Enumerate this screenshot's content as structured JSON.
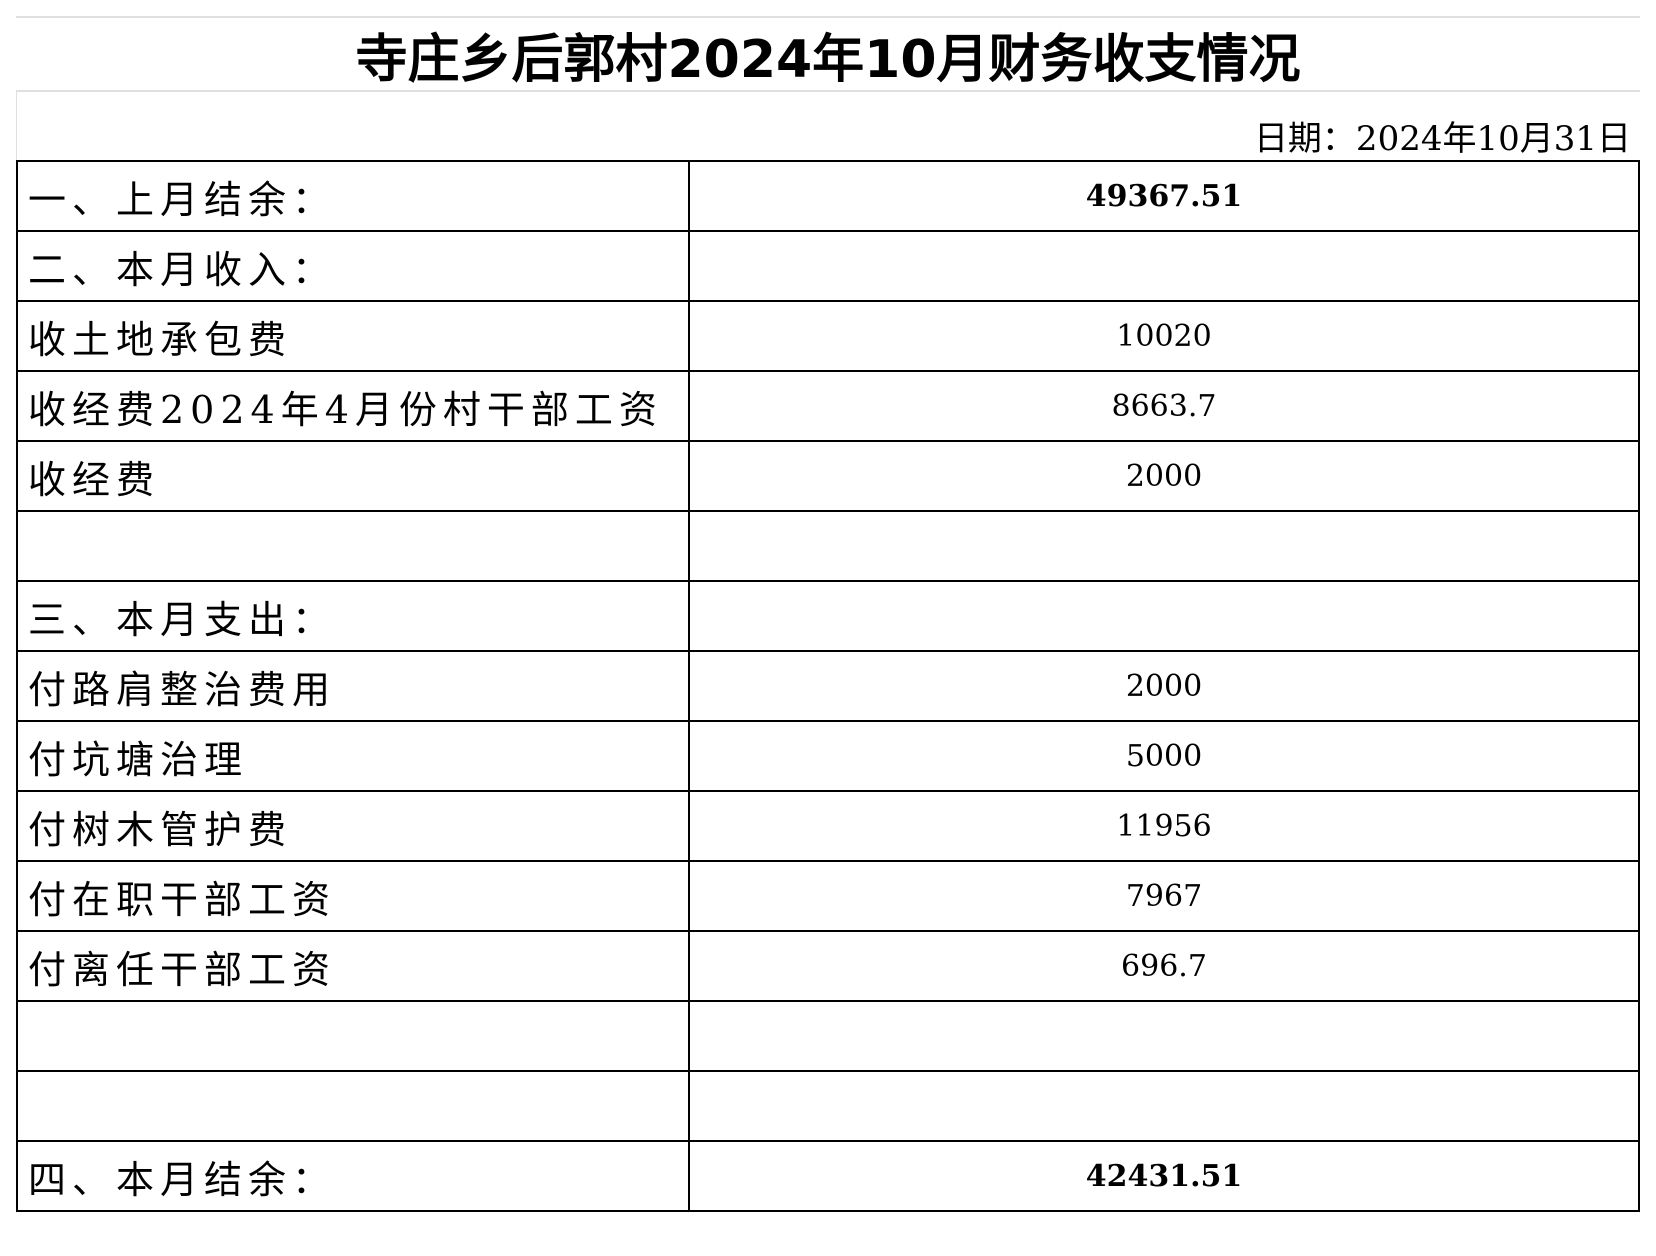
{
  "title": "寺庄乡后郭村2024年10月财务收支情况",
  "date_label": "日期：2024年10月31日",
  "rows": [
    {
      "label": "一、上月结余：",
      "value": "49367.51",
      "bold": true
    },
    {
      "label": "二、本月收入：",
      "value": ""
    },
    {
      "label": "收土地承包费",
      "value": "10020"
    },
    {
      "label": "收经费2024年4月份村干部工资",
      "value": "8663.7"
    },
    {
      "label": "收经费",
      "value": "2000"
    },
    {
      "label": "",
      "value": ""
    },
    {
      "label": "三、本月支出：",
      "value": ""
    },
    {
      "label": "付路肩整治费用",
      "value": "2000"
    },
    {
      "label": "付坑塘治理",
      "value": "5000"
    },
    {
      "label": "付树木管护费",
      "value": "11956"
    },
    {
      "label": "付在职干部工资",
      "value": "7967"
    },
    {
      "label": "付离任干部工资",
      "value": "696.7"
    },
    {
      "label": "",
      "value": ""
    },
    {
      "label": "",
      "value": ""
    },
    {
      "label": "四、本月结余：",
      "value": "42431.51",
      "bold": true
    }
  ]
}
